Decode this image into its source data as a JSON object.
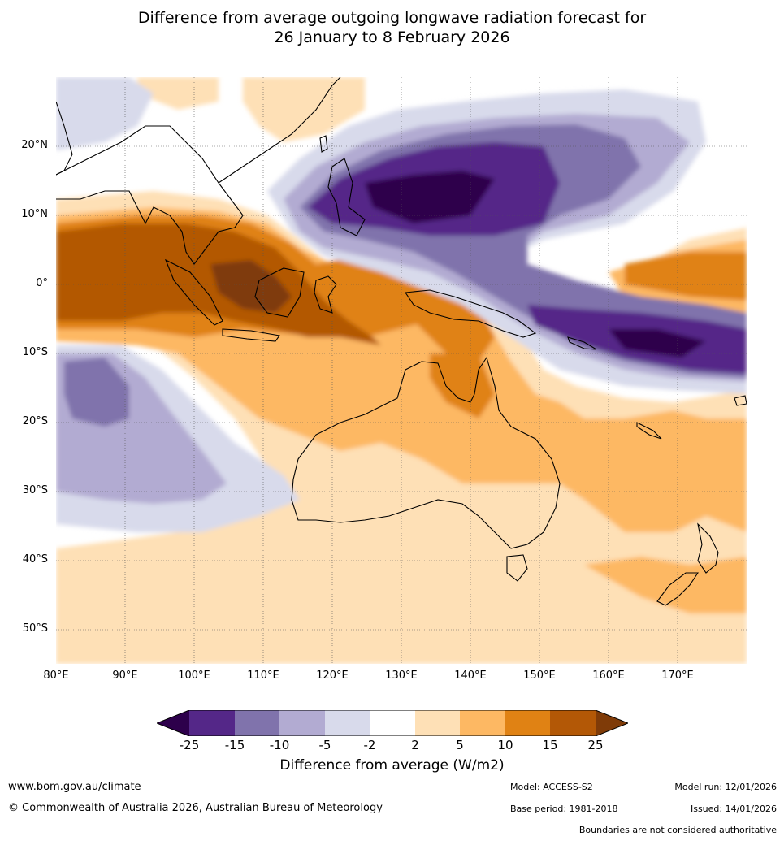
{
  "title": {
    "line1": "Difference from average outgoing longwave radiation forecast for",
    "line2": "26 January to 8 February 2026"
  },
  "map": {
    "lat_labels": [
      "20°N",
      "10°N",
      "0°",
      "10°S",
      "20°S",
      "30°S",
      "40°S",
      "50°S"
    ],
    "lon_labels": [
      "80°E",
      "90°E",
      "100°E",
      "110°E",
      "120°E",
      "130°E",
      "140°E",
      "150°E",
      "160°E",
      "170°E"
    ],
    "colors": {
      "neg25": "#2d004b",
      "neg15": "#542788",
      "neg10": "#8073ac",
      "neg5": "#b2abd2",
      "neg2": "#d8daeb",
      "neutral": "#ffffff",
      "pos2": "#fee0b6",
      "pos5": "#fdb863",
      "pos10": "#e08214",
      "pos15": "#b35806",
      "pos25": "#7f3b08"
    }
  },
  "colorbar": {
    "ticks": [
      "-25",
      "-15",
      "-10",
      "-5",
      "-2",
      "2",
      "5",
      "10",
      "15",
      "25"
    ],
    "label": "Difference from average (W/m2)"
  },
  "footer": {
    "website": "www.bom.gov.au/climate",
    "copyright": "© Commonwealth of Australia 2026, Australian Bureau of Meteorology",
    "model": "Model: ACCESS-S2",
    "base_period": "Base period: 1981-2018",
    "model_run": "Model run: 12/01/2026",
    "issued": "Issued: 14/01/2026",
    "disclaimer": "Boundaries are not considered authoritative"
  }
}
